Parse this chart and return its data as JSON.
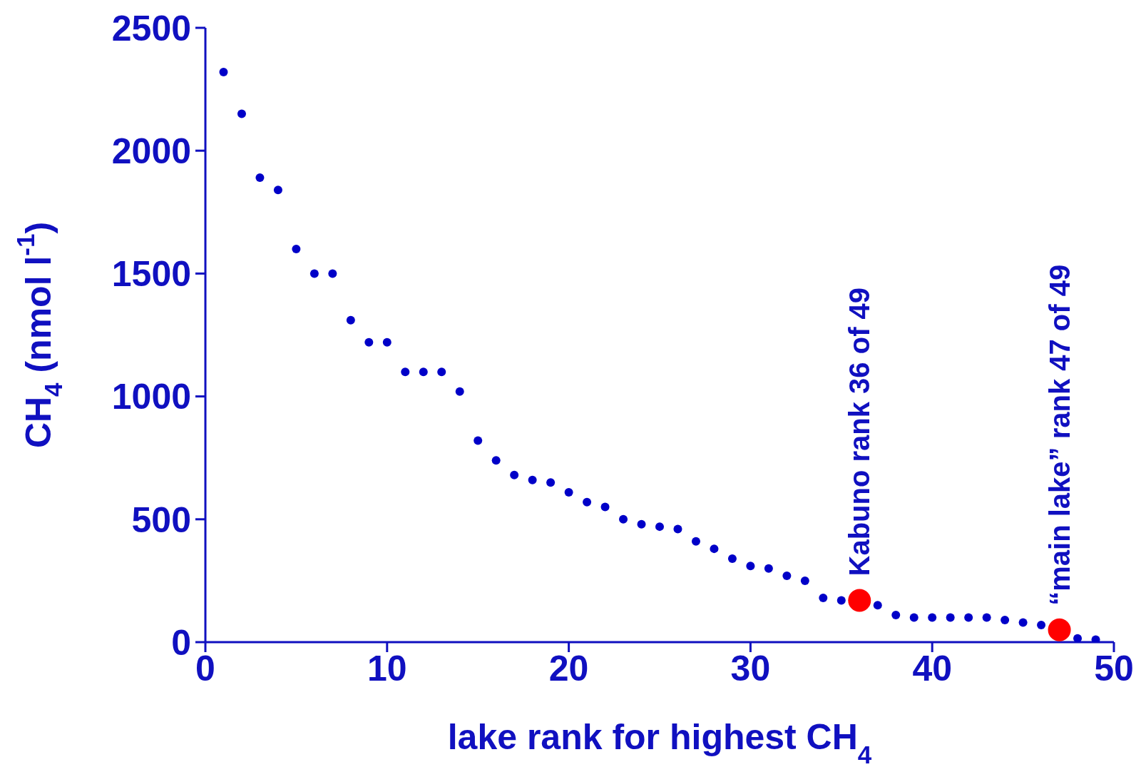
{
  "chart_data": {
    "type": "scatter",
    "xlabel": "lake rank for highest CH$_{4}$",
    "ylabel": "CH$_{4}$ (nmol l$^{-1}$)",
    "xlim": [
      0,
      50
    ],
    "xticks": [
      0,
      10,
      20,
      30,
      40,
      50
    ],
    "ylim": [
      0,
      2500
    ],
    "yticks": [
      0,
      500,
      1000,
      1500,
      2000,
      2500
    ],
    "marker": "circle",
    "grid": false,
    "legend": false,
    "series": [
      {
        "color": "#0000c8",
        "x": [
          1,
          2,
          3,
          4,
          5,
          6,
          7,
          8,
          9,
          10,
          11,
          12,
          13,
          14,
          15,
          16,
          17,
          18,
          19,
          20,
          21,
          22,
          23,
          24,
          25,
          26,
          27,
          28,
          29,
          30,
          31,
          32,
          33,
          34,
          35,
          37,
          38,
          39,
          40,
          41,
          42,
          43,
          44,
          45,
          46,
          48,
          49
        ],
        "values": [
          2320,
          2150,
          1890,
          1840,
          1600,
          1500,
          1500,
          1310,
          1220,
          1220,
          1100,
          1100,
          1100,
          1020,
          820,
          740,
          680,
          660,
          650,
          610,
          570,
          550,
          500,
          480,
          470,
          460,
          410,
          380,
          340,
          310,
          300,
          270,
          250,
          180,
          170,
          150,
          110,
          100,
          100,
          100,
          100,
          100,
          90,
          80,
          70,
          15,
          10
        ]
      },
      {
        "color": "#ff0000",
        "x": [
          36,
          47
        ],
        "values": [
          170,
          50
        ]
      }
    ],
    "annotations": [
      {
        "text": "Kabuno rank 36 of 49",
        "x": 36,
        "y": 170
      },
      {
        "text": "“main lake” rank 47 of 49",
        "x": 47,
        "y": 50
      }
    ]
  }
}
